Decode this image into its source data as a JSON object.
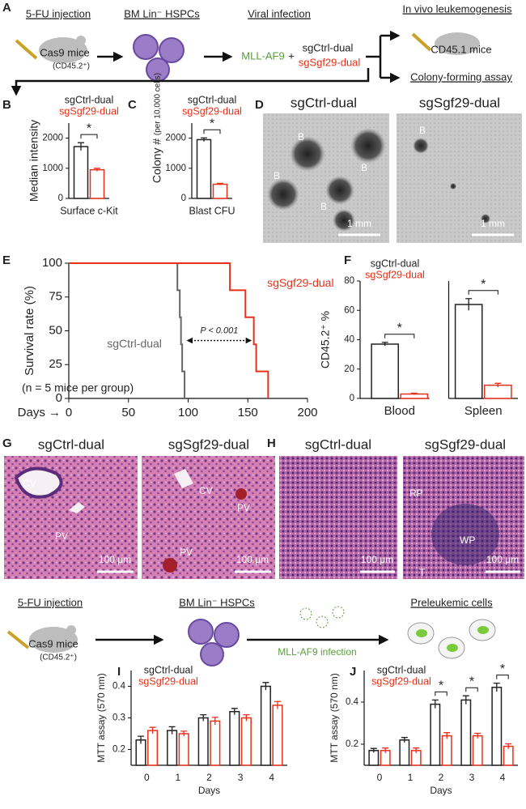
{
  "figure": {
    "A": {
      "label": "A",
      "step1": "5-FU injection",
      "mice": "Cas9 mice",
      "mice_note": "(CD45.2⁺)",
      "step2": "BM Lin⁻ HSPCs",
      "step3": "Viral infection",
      "virus": "MLL-AF9",
      "plus": "+",
      "guide1": "sgCtrl-dual",
      "guide2": "sgSgf29-dual",
      "outcome1": "In vivo leukemogenesis",
      "recipients": "CD45.1 mice",
      "outcome2": "Colony-forming assay"
    },
    "D": {
      "label": "D",
      "left": "sgCtrl-dual",
      "right": "sgSgf29-dual",
      "marker": "B",
      "scale": "1 mm"
    },
    "G": {
      "label": "G",
      "left": "sgCtrl-dual",
      "right": "sgSgf29-dual",
      "central_vein": "CV",
      "portal_vein": "PV",
      "scale": "100 μm"
    },
    "H": {
      "label": "H",
      "left": "sgCtrl-dual",
      "right": "sgSgf29-dual",
      "red_pulp": "RP",
      "white_pulp": "WP",
      "trabecula": "T",
      "scale": "100 μm"
    },
    "schematic_bottom": {
      "step1": "5-FU injection",
      "mice": "Cas9 mice",
      "mice_note": "(CD45.2⁺)",
      "step2": "BM Lin⁻ HSPCs",
      "step3": "MLL-AF9 infection",
      "outcome": "Preleukemic cells"
    }
  },
  "chart_data": [
    {
      "type": "bar",
      "label": "B",
      "ylabel": "Median intensity",
      "categories": [
        "Surface c-Kit"
      ],
      "series": [
        {
          "name": "sgCtrl-dual",
          "color": "#222222",
          "values": [
            1720
          ],
          "errors": [
            130
          ]
        },
        {
          "name": "sgSgf29-dual",
          "color": "#e8311a",
          "values": [
            950
          ],
          "errors": [
            50
          ]
        }
      ],
      "ylim": [
        0,
        2500
      ],
      "yticks": [
        0,
        1000,
        2000
      ],
      "significance": [
        "*"
      ]
    },
    {
      "type": "bar",
      "label": "C",
      "ylabel": "Colony #",
      "ylabel_note": "(per 10,000 cells)",
      "categories": [
        "Blast CFU"
      ],
      "series": [
        {
          "name": "sgCtrl-dual",
          "color": "#222222",
          "values": [
            1950
          ],
          "errors": [
            60
          ]
        },
        {
          "name": "sgSgf29-dual",
          "color": "#e8311a",
          "values": [
            470
          ],
          "errors": [
            30
          ]
        }
      ],
      "ylim": [
        0,
        2500
      ],
      "yticks": [
        0,
        1000,
        2000
      ],
      "significance": [
        "*"
      ]
    },
    {
      "type": "line",
      "drawstyle": "steps",
      "label": "E",
      "xlabel": "Days →",
      "ylabel": "Survival rate (%)",
      "series": [
        {
          "name": "sgCtrl-dual",
          "color": "#666666",
          "x": [
            0,
            91,
            93,
            94,
            95,
            97
          ],
          "values": [
            100,
            80,
            60,
            40,
            20,
            0
          ]
        },
        {
          "name": "sgSgf29-dual",
          "color": "#e8311a",
          "x": [
            0,
            135,
            148,
            155,
            157,
            167
          ],
          "values": [
            100,
            80,
            60,
            40,
            20,
            0
          ]
        }
      ],
      "xlim": [
        0,
        200
      ],
      "xticks": [
        0,
        50,
        100,
        150,
        200
      ],
      "ylim": [
        0,
        100
      ],
      "yticks": [
        0,
        25,
        50,
        75,
        100
      ],
      "pvalue": "P < 0.001",
      "note": "(n = 5 mice per group)"
    },
    {
      "type": "bar",
      "label": "F",
      "ylabel": "CD45.2⁺ %",
      "categories": [
        "Blood",
        "Spleen"
      ],
      "series": [
        {
          "name": "sgCtrl-dual",
          "color": "#222222",
          "values": [
            37,
            64
          ],
          "errors": [
            1.2,
            4
          ]
        },
        {
          "name": "sgSgf29-dual",
          "color": "#e8311a",
          "values": [
            3,
            9
          ],
          "errors": [
            0.6,
            1.3
          ]
        }
      ],
      "ylim": [
        0,
        80
      ],
      "yticks": [
        0,
        20,
        40,
        60,
        80
      ],
      "significance": [
        "*",
        "*"
      ]
    },
    {
      "type": "bar",
      "label": "I",
      "xlabel": "Days",
      "ylabel": "MTT assay (570 nm)",
      "categories": [
        "0",
        "1",
        "2",
        "3",
        "4"
      ],
      "series": [
        {
          "name": "sgCtrl-dual",
          "color": "#222222",
          "values": [
            0.23,
            0.26,
            0.3,
            0.32,
            0.4
          ],
          "errors": [
            0.012,
            0.012,
            0.01,
            0.01,
            0.012
          ]
        },
        {
          "name": "sgSgf29-dual",
          "color": "#e8311a",
          "values": [
            0.26,
            0.25,
            0.29,
            0.3,
            0.34
          ],
          "errors": [
            0.01,
            0.008,
            0.012,
            0.01,
            0.012
          ]
        }
      ],
      "ylim": [
        0.15,
        0.45
      ],
      "yticks": [
        0.2,
        0.3,
        0.4
      ],
      "significance": [
        null,
        null,
        null,
        null,
        null
      ]
    },
    {
      "type": "bar",
      "label": "J",
      "xlabel": "Days",
      "ylabel": "MTT assay (570 nm)",
      "categories": [
        "0",
        "1",
        "2",
        "3",
        "4"
      ],
      "series": [
        {
          "name": "sgCtrl-dual",
          "color": "#222222",
          "values": [
            0.17,
            0.22,
            0.39,
            0.41,
            0.47
          ],
          "errors": [
            0.01,
            0.012,
            0.02,
            0.02,
            0.02
          ]
        },
        {
          "name": "sgSgf29-dual",
          "color": "#e8311a",
          "values": [
            0.17,
            0.17,
            0.24,
            0.24,
            0.19
          ],
          "errors": [
            0.012,
            0.012,
            0.015,
            0.012,
            0.012
          ]
        }
      ],
      "ylim": [
        0.1,
        0.55
      ],
      "yticks": [
        0.2,
        0.4
      ],
      "significance": [
        null,
        null,
        "*",
        "*",
        "*"
      ]
    }
  ]
}
